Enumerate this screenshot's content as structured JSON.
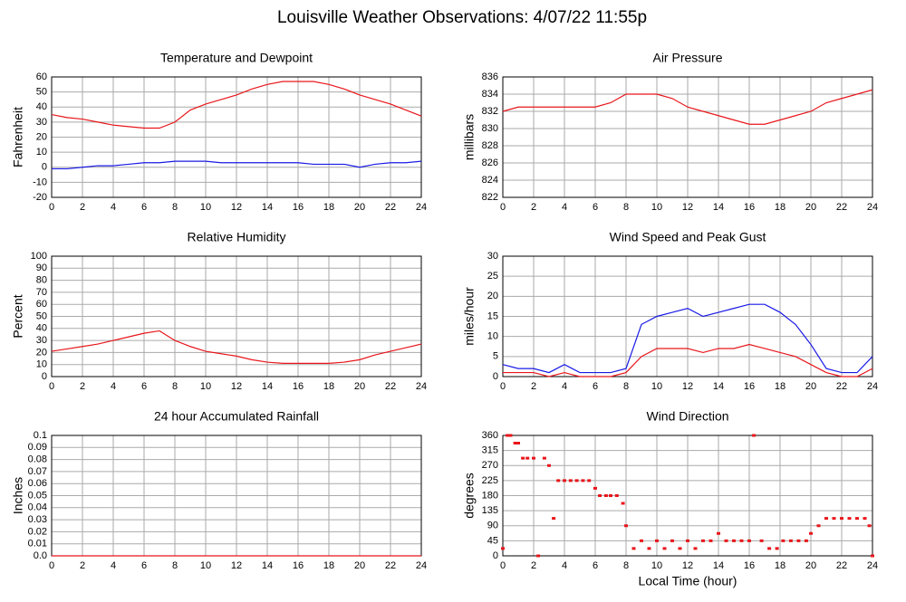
{
  "title": "Louisville Weather Observations: 4/07/22 11:55p",
  "chart_data": [
    {
      "type": "line",
      "title": "Temperature and Dewpoint",
      "ylabel": "Fahrenheit",
      "x": [
        0,
        1,
        2,
        3,
        4,
        5,
        6,
        7,
        8,
        9,
        10,
        11,
        12,
        13,
        14,
        15,
        16,
        17,
        18,
        19,
        20,
        21,
        22,
        23,
        24
      ],
      "xlim": [
        0,
        24
      ],
      "xticks": [
        0,
        2,
        4,
        6,
        8,
        10,
        12,
        14,
        16,
        18,
        20,
        22,
        24
      ],
      "ylim": [
        -20,
        60
      ],
      "yticks": [
        -20,
        -10,
        0,
        10,
        20,
        30,
        40,
        50,
        60
      ],
      "grid": true,
      "series": [
        {
          "color": "#e8161b",
          "values": [
            35,
            33,
            32,
            30,
            28,
            27,
            26,
            26,
            30,
            38,
            42,
            45,
            48,
            52,
            55,
            57,
            57,
            57,
            55,
            52,
            48,
            45,
            42,
            38,
            34
          ]
        },
        {
          "color": "#1a1ae6",
          "values": [
            -1,
            -1,
            0,
            1,
            1,
            2,
            3,
            3,
            4,
            4,
            4,
            3,
            3,
            3,
            3,
            3,
            3,
            2,
            2,
            2,
            0,
            2,
            3,
            3,
            4
          ]
        }
      ]
    },
    {
      "type": "line",
      "title": "Air Pressure",
      "ylabel": "millibars",
      "x": [
        0,
        1,
        2,
        3,
        4,
        5,
        6,
        7,
        8,
        9,
        10,
        11,
        12,
        13,
        14,
        15,
        16,
        17,
        18,
        19,
        20,
        21,
        22,
        23,
        24
      ],
      "xlim": [
        0,
        24
      ],
      "xticks": [
        0,
        2,
        4,
        6,
        8,
        10,
        12,
        14,
        16,
        18,
        20,
        22,
        24
      ],
      "ylim": [
        822,
        836
      ],
      "yticks": [
        822,
        824,
        826,
        828,
        830,
        832,
        834,
        836
      ],
      "grid": true,
      "series": [
        {
          "color": "#e8161b",
          "values": [
            832,
            832.5,
            832.5,
            832.5,
            832.5,
            832.5,
            832.5,
            833,
            834,
            834,
            834,
            833.5,
            832.5,
            832,
            831.5,
            831,
            830.5,
            830.5,
            831,
            831.5,
            832,
            833,
            833.5,
            834,
            834.5
          ]
        }
      ]
    },
    {
      "type": "line",
      "title": "Relative Humidity",
      "ylabel": "Percent",
      "x": [
        0,
        1,
        2,
        3,
        4,
        5,
        6,
        7,
        8,
        9,
        10,
        11,
        12,
        13,
        14,
        15,
        16,
        17,
        18,
        19,
        20,
        21,
        22,
        23,
        24
      ],
      "xlim": [
        0,
        24
      ],
      "xticks": [
        0,
        2,
        4,
        6,
        8,
        10,
        12,
        14,
        16,
        18,
        20,
        22,
        24
      ],
      "ylim": [
        0,
        100
      ],
      "yticks": [
        0,
        10,
        20,
        30,
        40,
        50,
        60,
        70,
        80,
        90,
        100
      ],
      "grid": true,
      "series": [
        {
          "color": "#e8161b",
          "values": [
            21,
            23,
            25,
            27,
            30,
            33,
            36,
            38,
            30,
            25,
            21,
            19,
            17,
            14,
            12,
            11,
            11,
            11,
            11,
            12,
            14,
            18,
            21,
            24,
            27
          ]
        }
      ]
    },
    {
      "type": "line",
      "title": "Wind Speed and Peak Gust",
      "ylabel": "miles/hour",
      "x": [
        0,
        1,
        2,
        3,
        4,
        5,
        6,
        7,
        8,
        9,
        10,
        11,
        12,
        13,
        14,
        15,
        16,
        17,
        18,
        19,
        20,
        21,
        22,
        23,
        24
      ],
      "xlim": [
        0,
        24
      ],
      "xticks": [
        0,
        2,
        4,
        6,
        8,
        10,
        12,
        14,
        16,
        18,
        20,
        22,
        24
      ],
      "ylim": [
        0,
        30
      ],
      "yticks": [
        0,
        5,
        10,
        15,
        20,
        25,
        30
      ],
      "grid": true,
      "series": [
        {
          "color": "#1a1ae6",
          "values": [
            3,
            2,
            2,
            1,
            3,
            1,
            1,
            1,
            2,
            13,
            15,
            16,
            17,
            15,
            16,
            17,
            18,
            18,
            16,
            13,
            8,
            2,
            1,
            1,
            5
          ]
        },
        {
          "color": "#e8161b",
          "values": [
            1,
            1,
            1,
            0,
            1,
            0,
            0,
            0,
            1,
            5,
            7,
            7,
            7,
            6,
            7,
            7,
            8,
            7,
            6,
            5,
            3,
            1,
            0,
            0,
            2
          ]
        }
      ]
    },
    {
      "type": "line",
      "title": "24 hour Accumulated Rainfall",
      "ylabel": "Inches",
      "x": [
        0,
        24
      ],
      "xlim": [
        0,
        24
      ],
      "xticks": [
        0,
        2,
        4,
        6,
        8,
        10,
        12,
        14,
        16,
        18,
        20,
        22,
        24
      ],
      "ylim": [
        0,
        0.1
      ],
      "yticks": [
        {
          "value": 0,
          "label": "0.0"
        },
        0.01,
        0.02,
        0.03,
        0.04,
        0.05,
        0.06,
        0.07,
        0.08,
        0.09,
        0.1
      ],
      "grid": true,
      "series": [
        {
          "color": "#e8161b",
          "values": [
            0,
            0
          ]
        }
      ]
    },
    {
      "type": "scatter",
      "title": "Wind Direction",
      "ylabel": "degrees",
      "xlabel": "Local Time (hour)",
      "x": [
        0,
        0.3,
        0.5,
        0.8,
        1,
        1.3,
        1.6,
        2,
        2.3,
        2.7,
        3,
        3.3,
        3.6,
        4,
        4.4,
        4.8,
        5.2,
        5.6,
        6,
        6.3,
        6.7,
        7,
        7.4,
        7.8,
        8,
        8.5,
        9,
        9.5,
        10,
        10.5,
        11,
        11.5,
        12,
        12.5,
        13,
        13.5,
        14,
        14.5,
        15,
        15.5,
        16,
        16.3,
        16.8,
        17.3,
        17.8,
        18.2,
        18.7,
        19.2,
        19.7,
        20,
        20.5,
        21,
        21.5,
        22,
        22.5,
        23,
        23.5,
        23.8,
        24
      ],
      "xlim": [
        0,
        24
      ],
      "xticks": [
        0,
        2,
        4,
        6,
        8,
        10,
        12,
        14,
        16,
        18,
        20,
        22,
        24
      ],
      "ylim": [
        0,
        360
      ],
      "yticks": [
        0,
        45,
        90,
        135,
        180,
        225,
        270,
        315,
        360
      ],
      "grid": true,
      "series": [
        {
          "color": "#e8161b",
          "values": [
            22,
            360,
            360,
            337,
            337,
            292,
            292,
            292,
            0,
            292,
            270,
            112,
            225,
            225,
            225,
            225,
            225,
            225,
            202,
            180,
            180,
            180,
            180,
            157,
            90,
            22,
            45,
            22,
            45,
            22,
            45,
            22,
            45,
            22,
            45,
            45,
            67,
            45,
            45,
            45,
            45,
            360,
            45,
            22,
            22,
            45,
            45,
            45,
            45,
            67,
            90,
            112,
            112,
            112,
            112,
            112,
            112,
            90,
            0
          ]
        }
      ]
    }
  ]
}
